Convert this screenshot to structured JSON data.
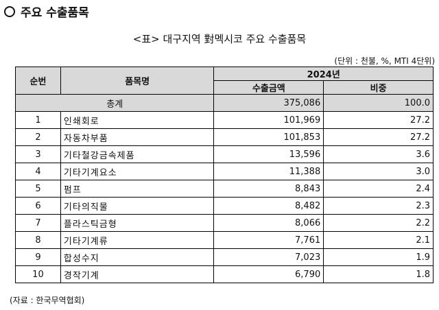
{
  "heading": "주요 수출품목",
  "table_title": "<표> 대구지역 對멕시코 주요 수출품목",
  "unit_note": "(단위 : 천불, %, MTI 4단위)",
  "columns": {
    "rank": "순번",
    "item": "품목명",
    "year": "2024년",
    "export_amount": "수출금액",
    "share": "비중"
  },
  "total": {
    "label": "총계",
    "amount": "375,086",
    "share": "100.0"
  },
  "rows": [
    {
      "rank": "1",
      "item": "인쇄회로",
      "amount": "101,969",
      "share": "27.2"
    },
    {
      "rank": "2",
      "item": "자동차부품",
      "amount": "101,853",
      "share": "27.2"
    },
    {
      "rank": "3",
      "item": "기타철강금속제품",
      "amount": "13,596",
      "share": "3.6"
    },
    {
      "rank": "4",
      "item": "기타기계요소",
      "amount": "11,388",
      "share": "3.0"
    },
    {
      "rank": "5",
      "item": "펌프",
      "amount": "8,843",
      "share": "2.4"
    },
    {
      "rank": "6",
      "item": "기타의직물",
      "amount": "8,482",
      "share": "2.3"
    },
    {
      "rank": "7",
      "item": "플라스틱금형",
      "amount": "8,066",
      "share": "2.2"
    },
    {
      "rank": "8",
      "item": "기타기계류",
      "amount": "7,761",
      "share": "2.1"
    },
    {
      "rank": "9",
      "item": "합성수지",
      "amount": "7,023",
      "share": "1.9"
    },
    {
      "rank": "10",
      "item": "경작기계",
      "amount": "6,790",
      "share": "1.8"
    }
  ],
  "source": "(자료 : 한국무역협회)"
}
